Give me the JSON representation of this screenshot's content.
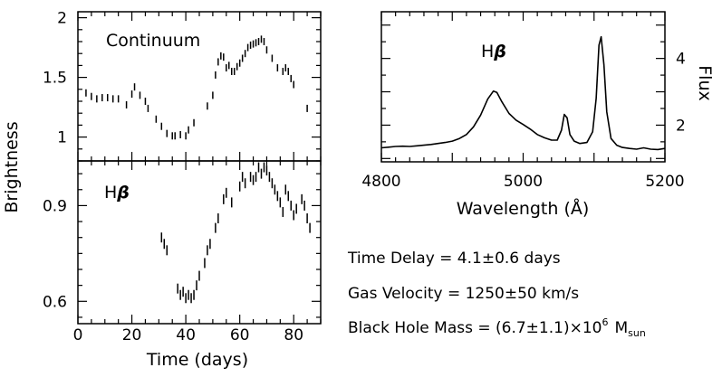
{
  "chart_data": [
    {
      "type": "scatter",
      "panel": "Continuum light curve",
      "label": "Continuum",
      "xlim": [
        0,
        90
      ],
      "ylim": [
        0.8,
        2.05
      ],
      "yticks": [
        1,
        1.5,
        2
      ],
      "ytick_labels": [
        "1",
        "1.5",
        "2"
      ],
      "xticks": [
        0,
        20,
        40,
        60,
        80
      ],
      "marker": "vertical error bar",
      "points": [
        {
          "x": 3,
          "y": 1.37
        },
        {
          "x": 5,
          "y": 1.34
        },
        {
          "x": 7,
          "y": 1.32
        },
        {
          "x": 9,
          "y": 1.33
        },
        {
          "x": 11,
          "y": 1.33
        },
        {
          "x": 13,
          "y": 1.32
        },
        {
          "x": 15,
          "y": 1.32
        },
        {
          "x": 18,
          "y": 1.27
        },
        {
          "x": 20,
          "y": 1.36
        },
        {
          "x": 21,
          "y": 1.42
        },
        {
          "x": 23,
          "y": 1.35
        },
        {
          "x": 25,
          "y": 1.3
        },
        {
          "x": 26,
          "y": 1.24
        },
        {
          "x": 29,
          "y": 1.15
        },
        {
          "x": 31,
          "y": 1.09
        },
        {
          "x": 33,
          "y": 1.03
        },
        {
          "x": 35,
          "y": 1.01
        },
        {
          "x": 36,
          "y": 1.01
        },
        {
          "x": 38,
          "y": 1.02
        },
        {
          "x": 40,
          "y": 1.01
        },
        {
          "x": 41,
          "y": 1.06
        },
        {
          "x": 43,
          "y": 1.12
        },
        {
          "x": 48,
          "y": 1.26
        },
        {
          "x": 50,
          "y": 1.35
        },
        {
          "x": 51,
          "y": 1.52
        },
        {
          "x": 52,
          "y": 1.63
        },
        {
          "x": 53,
          "y": 1.68
        },
        {
          "x": 54,
          "y": 1.67
        },
        {
          "x": 55,
          "y": 1.58
        },
        {
          "x": 56,
          "y": 1.6
        },
        {
          "x": 57,
          "y": 1.55
        },
        {
          "x": 58,
          "y": 1.55
        },
        {
          "x": 59,
          "y": 1.59
        },
        {
          "x": 60,
          "y": 1.62
        },
        {
          "x": 61,
          "y": 1.66
        },
        {
          "x": 62,
          "y": 1.7
        },
        {
          "x": 63,
          "y": 1.75
        },
        {
          "x": 64,
          "y": 1.77
        },
        {
          "x": 65,
          "y": 1.78
        },
        {
          "x": 66,
          "y": 1.79
        },
        {
          "x": 67,
          "y": 1.8
        },
        {
          "x": 68,
          "y": 1.82
        },
        {
          "x": 69,
          "y": 1.8
        },
        {
          "x": 70,
          "y": 1.73
        },
        {
          "x": 72,
          "y": 1.66
        },
        {
          "x": 74,
          "y": 1.58
        },
        {
          "x": 76,
          "y": 1.55
        },
        {
          "x": 77,
          "y": 1.58
        },
        {
          "x": 78,
          "y": 1.55
        },
        {
          "x": 79,
          "y": 1.49
        },
        {
          "x": 80,
          "y": 1.44
        },
        {
          "x": 85,
          "y": 1.24
        }
      ]
    },
    {
      "type": "scatter",
      "panel": "H-beta light curve",
      "label": "Hβ",
      "xlim": [
        0,
        90
      ],
      "xlabel": "Time (days)",
      "ylim": [
        0.53,
        1.04
      ],
      "yticks": [
        0.6,
        0.9
      ],
      "ytick_labels": [
        "0.6",
        "0.9"
      ],
      "xticks": [
        0,
        20,
        40,
        60,
        80
      ],
      "xtick_labels": [
        "0",
        "20",
        "40",
        "60",
        "80"
      ],
      "marker": "vertical error bar",
      "points": [
        {
          "x": 31,
          "y": 0.8
        },
        {
          "x": 32,
          "y": 0.78
        },
        {
          "x": 33,
          "y": 0.76
        },
        {
          "x": 37,
          "y": 0.64
        },
        {
          "x": 38,
          "y": 0.62
        },
        {
          "x": 39,
          "y": 0.63
        },
        {
          "x": 40,
          "y": 0.61
        },
        {
          "x": 41,
          "y": 0.62
        },
        {
          "x": 42,
          "y": 0.61
        },
        {
          "x": 43,
          "y": 0.62
        },
        {
          "x": 44,
          "y": 0.65
        },
        {
          "x": 45,
          "y": 0.68
        },
        {
          "x": 47,
          "y": 0.72
        },
        {
          "x": 48,
          "y": 0.76
        },
        {
          "x": 49,
          "y": 0.78
        },
        {
          "x": 51,
          "y": 0.83
        },
        {
          "x": 52,
          "y": 0.86
        },
        {
          "x": 54,
          "y": 0.92
        },
        {
          "x": 55,
          "y": 0.94
        },
        {
          "x": 57,
          "y": 0.91
        },
        {
          "x": 60,
          "y": 0.96
        },
        {
          "x": 61,
          "y": 0.99
        },
        {
          "x": 62,
          "y": 0.97
        },
        {
          "x": 64,
          "y": 0.99
        },
        {
          "x": 65,
          "y": 0.98
        },
        {
          "x": 66,
          "y": 0.99
        },
        {
          "x": 67,
          "y": 1.02
        },
        {
          "x": 68,
          "y": 1.0
        },
        {
          "x": 69,
          "y": 1.02
        },
        {
          "x": 70,
          "y": 1.01
        },
        {
          "x": 71,
          "y": 0.99
        },
        {
          "x": 72,
          "y": 0.97
        },
        {
          "x": 73,
          "y": 0.95
        },
        {
          "x": 74,
          "y": 0.93
        },
        {
          "x": 75,
          "y": 0.91
        },
        {
          "x": 76,
          "y": 0.88
        },
        {
          "x": 77,
          "y": 0.95
        },
        {
          "x": 78,
          "y": 0.93
        },
        {
          "x": 79,
          "y": 0.9
        },
        {
          "x": 80,
          "y": 0.87
        },
        {
          "x": 81,
          "y": 0.89
        },
        {
          "x": 83,
          "y": 0.92
        },
        {
          "x": 84,
          "y": 0.9
        },
        {
          "x": 85,
          "y": 0.86
        },
        {
          "x": 86,
          "y": 0.83
        }
      ]
    },
    {
      "type": "line",
      "panel": "H-beta spectrum",
      "label": "Hβ",
      "xlabel": "Wavelength (Å)",
      "ylabel": "Flux",
      "xlim": [
        4800,
        5200
      ],
      "xticks": [
        4800,
        5000,
        5200
      ],
      "xtick_labels": [
        "4800",
        "5000",
        "5200"
      ],
      "ylim": [
        0.9,
        5.4
      ],
      "yticks": [
        2,
        4
      ],
      "ytick_labels": [
        "2",
        "4"
      ],
      "points": [
        [
          4800,
          1.32
        ],
        [
          4810,
          1.34
        ],
        [
          4820,
          1.36
        ],
        [
          4830,
          1.37
        ],
        [
          4840,
          1.36
        ],
        [
          4850,
          1.38
        ],
        [
          4860,
          1.4
        ],
        [
          4870,
          1.42
        ],
        [
          4880,
          1.45
        ],
        [
          4890,
          1.48
        ],
        [
          4900,
          1.52
        ],
        [
          4910,
          1.6
        ],
        [
          4920,
          1.72
        ],
        [
          4930,
          1.95
        ],
        [
          4940,
          2.3
        ],
        [
          4950,
          2.78
        ],
        [
          4958,
          3.02
        ],
        [
          4963,
          2.98
        ],
        [
          4970,
          2.7
        ],
        [
          4980,
          2.35
        ],
        [
          4990,
          2.15
        ],
        [
          5000,
          2.02
        ],
        [
          5010,
          1.88
        ],
        [
          5020,
          1.72
        ],
        [
          5030,
          1.62
        ],
        [
          5040,
          1.55
        ],
        [
          5048,
          1.55
        ],
        [
          5054,
          1.85
        ],
        [
          5058,
          2.32
        ],
        [
          5062,
          2.22
        ],
        [
          5066,
          1.72
        ],
        [
          5072,
          1.52
        ],
        [
          5080,
          1.45
        ],
        [
          5090,
          1.48
        ],
        [
          5098,
          1.8
        ],
        [
          5103,
          2.8
        ],
        [
          5107,
          4.4
        ],
        [
          5110,
          4.65
        ],
        [
          5114,
          3.8
        ],
        [
          5118,
          2.4
        ],
        [
          5124,
          1.6
        ],
        [
          5132,
          1.4
        ],
        [
          5140,
          1.33
        ],
        [
          5150,
          1.3
        ],
        [
          5160,
          1.28
        ],
        [
          5170,
          1.32
        ],
        [
          5180,
          1.28
        ],
        [
          5190,
          1.27
        ],
        [
          5200,
          1.3
        ]
      ]
    }
  ],
  "labels": {
    "brightness_axis": "Brightness",
    "time_axis": "Time (days)",
    "continuum_label": "Continuum",
    "hbeta_prefix": "H",
    "hbeta_suffix": "β",
    "wavelength_axis": "Wavelength (Å)",
    "flux_axis": "Flux"
  },
  "results": {
    "time_delay": "Time Delay = 4.1±0.6 days",
    "gas_velocity": "Gas Velocity = 1250±50 km/s",
    "black_hole_mass_main": "Black Hole Mass = (6.7±1.1)×10",
    "black_hole_mass_exponent": "6",
    "black_hole_mass_unit": "M",
    "black_hole_mass_unit_subscript": "sun"
  },
  "colors": {
    "ink": "#000000",
    "background": "#ffffff"
  }
}
